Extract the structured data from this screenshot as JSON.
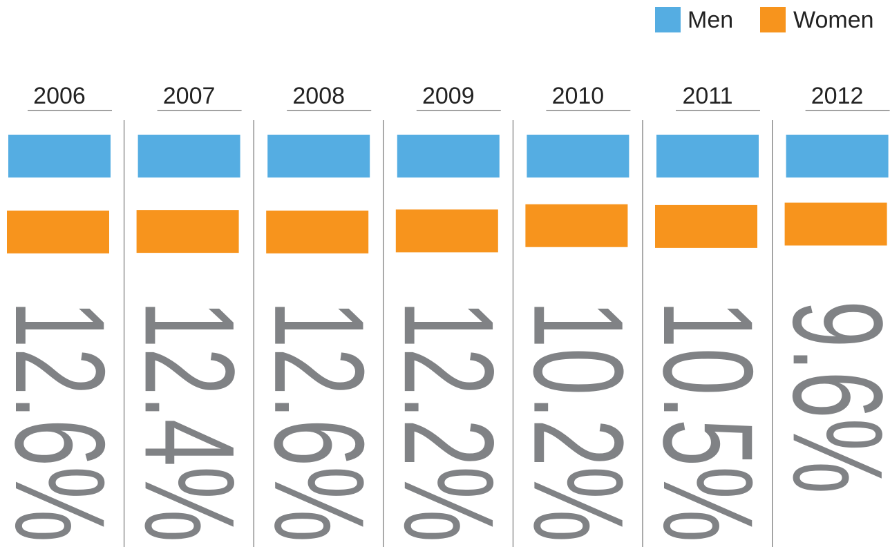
{
  "chart_data": {
    "type": "bar",
    "categories": [
      "2006",
      "2007",
      "2008",
      "2009",
      "2010",
      "2011",
      "2012"
    ],
    "values": [
      12.6,
      12.4,
      12.6,
      12.2,
      10.2,
      10.5,
      9.6
    ],
    "value_labels": [
      "12.6%",
      "12.4%",
      "12.6%",
      "12.2%",
      "10.2%",
      "10.5%",
      "9.6%"
    ],
    "series": [
      {
        "name": "Men",
        "color": "#55ade2"
      },
      {
        "name": "Women",
        "color": "#f7941d"
      }
    ],
    "legend": "top-right"
  }
}
